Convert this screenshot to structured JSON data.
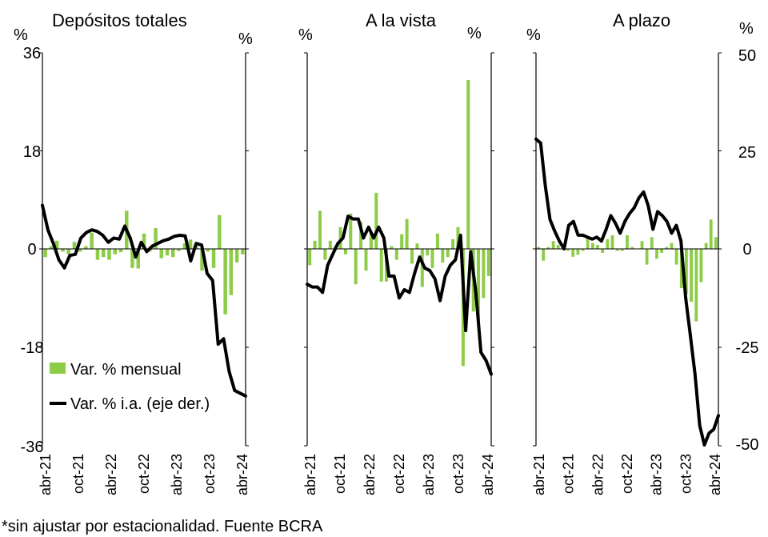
{
  "chart_data": [
    {
      "type": "bar",
      "title": "Depósitos totales",
      "left_unit": "%",
      "right_unit": "%",
      "left_axis": {
        "ylim": [
          -36,
          36
        ],
        "ticks": [
          "36",
          "18",
          "0",
          "-18",
          "-36"
        ]
      },
      "x_tick_labels": [
        "abr-21",
        "oct-21",
        "abr-22",
        "oct-22",
        "abr-23",
        "oct-23",
        "abr-24"
      ],
      "legend": [
        "Var. % mensual",
        "Var. % i.a. (eje der.)"
      ],
      "series": [
        {
          "name": "Var. % mensual",
          "kind": "bar",
          "values": [
            -1.5,
            0.5,
            1.5,
            -0.5,
            -1,
            1.3,
            -0.5,
            0.5,
            3,
            -2,
            -1.5,
            -2,
            -1,
            -0.6,
            7,
            -3.5,
            -3.6,
            2.8,
            -0.5,
            3.8,
            -1.7,
            -1.2,
            -1.5,
            -0.4,
            1,
            1.7,
            0.5,
            -4,
            -0.5,
            -3.5,
            6.2,
            -12,
            -8.5,
            -2.5,
            -1
          ]
        },
        {
          "name": "Var. % i.a. (eje der.)",
          "kind": "line",
          "values": [
            8,
            3.5,
            1,
            -2,
            -3.5,
            -1.2,
            -1,
            2,
            3,
            3.5,
            3.2,
            2.5,
            1.2,
            2,
            1.8,
            4.2,
            2,
            -1.5,
            1.2,
            -0.5,
            0.5,
            1,
            1.5,
            1.8,
            2.3,
            2.5,
            2.4,
            -2.2,
            1,
            0.7,
            -4.5,
            -5.8,
            -17.5,
            -16.5,
            -22.5,
            -26,
            -26.5,
            -27
          ]
        }
      ]
    },
    {
      "type": "bar",
      "title": "A la vista",
      "left_unit": "%",
      "right_unit": "%",
      "x_tick_labels": [
        "abr-21",
        "oct-21",
        "abr-22",
        "oct-22",
        "abr-23",
        "oct-23",
        "abr-24"
      ],
      "series": [
        {
          "name": "Var. % mensual",
          "kind": "bar",
          "values": [
            -3,
            1.5,
            7,
            -2,
            1.5,
            0.5,
            4,
            -1,
            6.5,
            -6.5,
            5,
            -4,
            3,
            10.3,
            -6,
            -6,
            0.5,
            -2,
            2.7,
            5.5,
            -2.7,
            1,
            -7,
            -1.2,
            -3.5,
            2.8,
            -2.5,
            -1.5,
            1.8,
            4,
            -21.5,
            31,
            -11.5,
            -13.5,
            -9,
            -5
          ]
        },
        {
          "name": "Var. % i.a. (eje der.)",
          "kind": "line",
          "values": [
            -6.5,
            -7,
            -7,
            -8,
            -3,
            -1,
            1,
            2,
            6,
            5.5,
            5.5,
            2,
            4,
            2,
            4,
            2,
            -5,
            -5,
            -9,
            -7.5,
            -8,
            -4.5,
            -1.5,
            -3.5,
            -4,
            -5.5,
            -9.5,
            -5,
            -3,
            -2,
            2.5,
            -15,
            -0.5,
            -8,
            -19,
            -20.5,
            -23
          ]
        }
      ]
    },
    {
      "type": "bar",
      "title": "A plazo",
      "left_unit": "%",
      "right_unit": "%",
      "right_axis": {
        "ylim": [
          -50,
          50
        ],
        "ticks": [
          "50",
          "25",
          "0",
          "-25",
          "-50"
        ]
      },
      "x_tick_labels": [
        "abr-21",
        "oct-21",
        "abr-22",
        "oct-22",
        "abr-23",
        "oct-23",
        "abr-24"
      ],
      "series": [
        {
          "name": "Var. % mensual",
          "kind": "bar",
          "values": [
            0.5,
            -3,
            0.5,
            2,
            1,
            0.5,
            -0.5,
            -2,
            -1.5,
            -0.5,
            3,
            1.5,
            1,
            -1,
            2.5,
            3.5,
            -0.5,
            -0.5,
            3.5,
            0.5,
            0,
            2,
            -4,
            3,
            -2.5,
            -1,
            0.5,
            1.5,
            -4,
            -10,
            -11.5,
            -13.5,
            -18.5,
            -8.5,
            1.5,
            7.5,
            3
          ]
        },
        {
          "name": "Var. % i.a. (eje der.)",
          "kind": "line",
          "values": [
            28,
            27,
            16,
            7.5,
            4.5,
            2,
            0,
            6,
            7,
            3.5,
            3.5,
            3,
            2.5,
            3,
            2,
            5,
            8.5,
            6.5,
            4,
            7,
            9,
            10.5,
            13,
            14.5,
            11,
            5,
            9.5,
            8.5,
            7,
            4,
            6,
            2,
            -12.5,
            -22,
            -32,
            -45,
            -50,
            -47,
            -46,
            -42.5
          ]
        }
      ]
    }
  ],
  "footnote": "*sin ajustar por estacionalidad. Fuente BCRA",
  "colors": {
    "bar": "#8ccc47",
    "line": "#000000",
    "axis": "#000000"
  }
}
